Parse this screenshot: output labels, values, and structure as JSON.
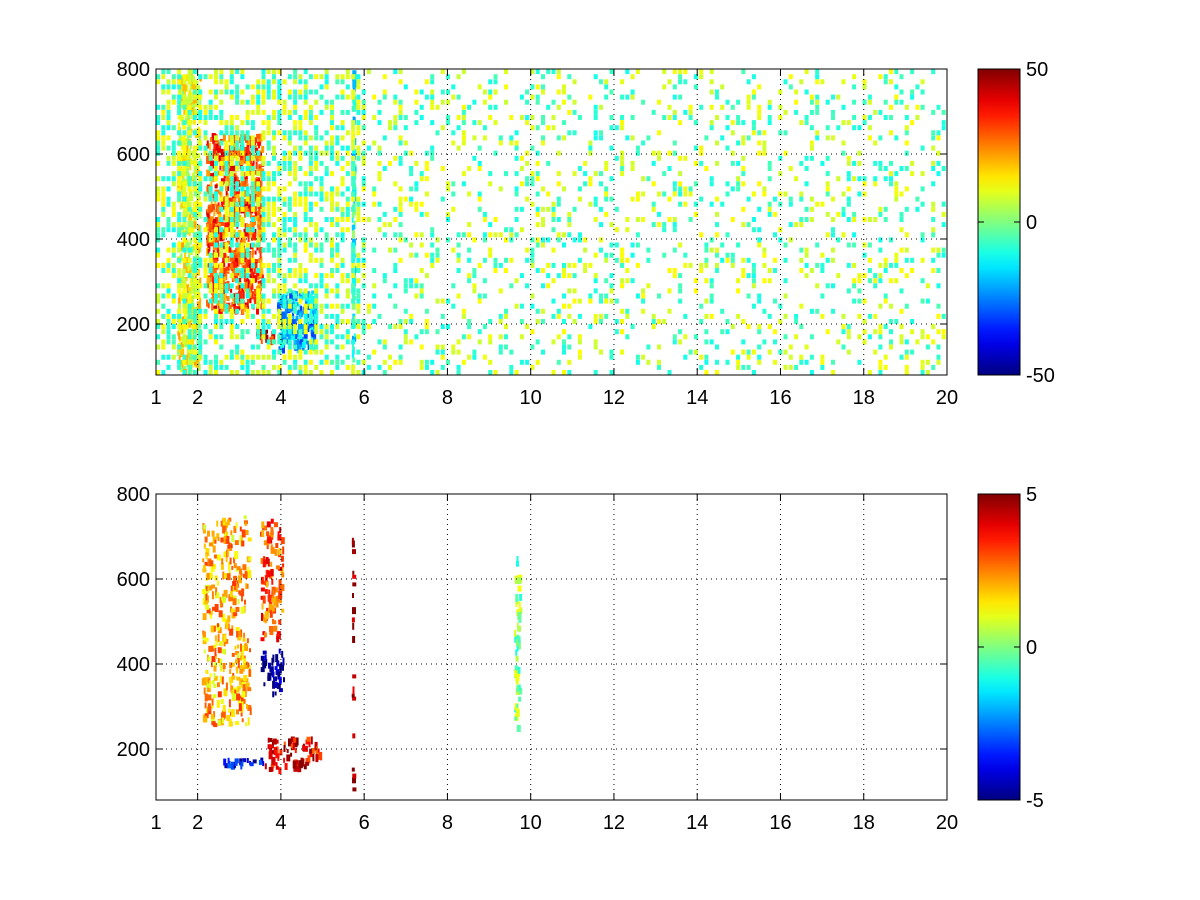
{
  "chart_data": [
    {
      "type": "heatmap",
      "title": "",
      "xlabel": "",
      "ylabel": "",
      "xlim": [
        1,
        20
      ],
      "ylim": [
        80,
        800
      ],
      "x_ticks": [
        1,
        2,
        4,
        6,
        8,
        10,
        12,
        14,
        16,
        18,
        20
      ],
      "x_tick_labels": [
        "1",
        "2",
        "4",
        "6",
        "8",
        "10",
        "12",
        "14",
        "16",
        "18",
        "20"
      ],
      "y_ticks": [
        200,
        400,
        600,
        800
      ],
      "y_tick_labels": [
        "200",
        "400",
        "600",
        "800"
      ],
      "grid": true,
      "colormap": "jet",
      "clim": [
        -50,
        50
      ],
      "colorbar_ticks": [
        50,
        0,
        -50
      ],
      "colorbar_tick_labels": [
        "50",
        "0",
        "-50"
      ],
      "features": [
        {
          "x": [
            2.2,
            3.6
          ],
          "y": [
            220,
            650
          ],
          "value": 30
        },
        {
          "x": [
            3.4,
            3.9
          ],
          "y": [
            150,
            190
          ],
          "value": 40
        },
        {
          "x": [
            3.9,
            4.9
          ],
          "y": [
            130,
            280
          ],
          "value": -20
        },
        {
          "x": [
            5.7,
            5.8
          ],
          "y": [
            80,
            800
          ],
          "value": -10
        },
        {
          "x": [
            1.5,
            2.1
          ],
          "y": [
            80,
            800
          ],
          "value": 10
        }
      ]
    },
    {
      "type": "heatmap",
      "title": "",
      "xlabel": "",
      "ylabel": "",
      "xlim": [
        1,
        20
      ],
      "ylim": [
        80,
        800
      ],
      "x_ticks": [
        1,
        2,
        4,
        6,
        8,
        10,
        12,
        14,
        16,
        18,
        20
      ],
      "x_tick_labels": [
        "1",
        "2",
        "4",
        "6",
        "8",
        "10",
        "12",
        "14",
        "16",
        "18",
        "20"
      ],
      "y_ticks": [
        200,
        400,
        600,
        800
      ],
      "y_tick_labels": [
        "200",
        "400",
        "600",
        "800"
      ],
      "grid": true,
      "colormap": "jet",
      "clim": [
        -5,
        5
      ],
      "colorbar_ticks": [
        5,
        0,
        -5
      ],
      "colorbar_tick_labels": [
        "5",
        "0",
        "-5"
      ],
      "features": [
        {
          "x": [
            2.1,
            3.3
          ],
          "y": [
            250,
            750
          ],
          "value": 2
        },
        {
          "x": [
            3.5,
            4.1
          ],
          "y": [
            320,
            440
          ],
          "value": -5
        },
        {
          "x": [
            3.5,
            4.1
          ],
          "y": [
            450,
            750
          ],
          "value": 3
        },
        {
          "x": [
            2.6,
            3.6
          ],
          "y": [
            150,
            180
          ],
          "value": -4
        },
        {
          "x": [
            3.6,
            5.0
          ],
          "y": [
            140,
            230
          ],
          "value": 4
        },
        {
          "x": [
            5.7,
            5.75
          ],
          "y": [
            100,
            780
          ],
          "value": 5
        },
        {
          "x": [
            9.6,
            9.8
          ],
          "y": [
            240,
            660
          ],
          "value": 0
        }
      ]
    }
  ]
}
